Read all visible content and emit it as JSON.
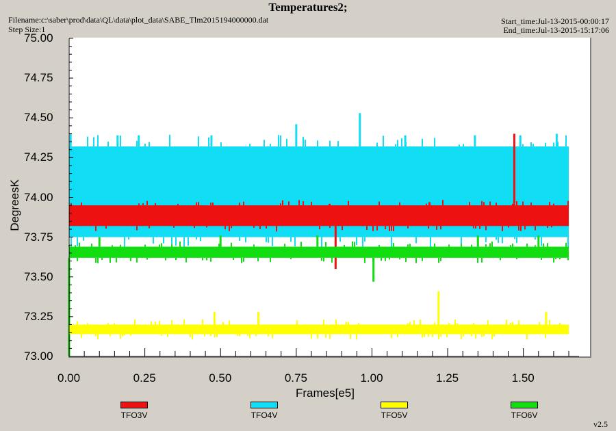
{
  "header": {
    "title": "Temperatures2;",
    "filename": "Filename:c:\\saber\\prod\\data\\QL\\data\\plot_data\\SABE_Tlm2015194000000.dat",
    "step_size": "Step Size:1",
    "start_time": "Start_time:Jul-13-2015-00:00:17",
    "end_time": "End_time:Jul-13-2015-15:17:06"
  },
  "version": "v2.5",
  "chart_data": {
    "type": "line",
    "title": "Temperatures2;",
    "xlabel": "Frames[e5]",
    "ylabel": "DegreesK",
    "xlim": [
      0,
      1.72
    ],
    "ylim": [
      73.0,
      75.0
    ],
    "x_ticks": [
      "0.00",
      "0.25",
      "0.50",
      "0.75",
      "1.00",
      "1.25",
      "1.50"
    ],
    "y_ticks": [
      "73.00",
      "73.25",
      "73.50",
      "73.75",
      "74.00",
      "74.25",
      "74.50",
      "74.75",
      "75.00"
    ],
    "x_range": [
      0,
      1.65
    ],
    "series": [
      {
        "name": "TFO3V",
        "color": "#ee1111",
        "band": [
          73.82,
          73.95
        ],
        "spikes": [
          [
            0.04,
            73.95
          ],
          [
            0.19,
            73.9
          ],
          [
            0.43,
            73.95
          ],
          [
            0.86,
            73.96
          ],
          [
            0.88,
            73.55
          ],
          [
            0.97,
            73.92
          ],
          [
            1.06,
            73.95
          ],
          [
            1.19,
            73.97
          ],
          [
            1.47,
            74.4
          ],
          [
            1.51,
            73.92
          ]
        ]
      },
      {
        "name": "TFO4V",
        "color": "#11ddf5",
        "band": [
          73.75,
          74.32
        ],
        "spikes": [
          [
            0.005,
            74.4
          ],
          [
            0.16,
            74.39
          ],
          [
            0.23,
            74.39
          ],
          [
            0.47,
            74.39
          ],
          [
            0.75,
            74.46
          ],
          [
            0.96,
            74.53
          ],
          [
            1.11,
            74.39
          ],
          [
            1.34,
            74.39
          ],
          [
            1.49,
            74.39
          ],
          [
            1.61,
            74.4
          ]
        ]
      },
      {
        "name": "TFO5V",
        "color": "#ffff00",
        "band": [
          73.14,
          73.2
        ],
        "spikes": [
          [
            0.48,
            73.28
          ],
          [
            0.625,
            73.28
          ],
          [
            1.22,
            73.41
          ],
          [
            1.575,
            73.28
          ]
        ]
      },
      {
        "name": "TFO6V",
        "color": "#11dd11",
        "band": [
          73.62,
          73.69
        ],
        "spikes": [
          [
            0.0,
            73.0
          ],
          [
            0.1,
            73.75
          ],
          [
            0.5,
            73.76
          ],
          [
            0.82,
            73.76
          ],
          [
            1.005,
            73.47
          ],
          [
            1.35,
            73.76
          ],
          [
            1.55,
            73.76
          ]
        ]
      }
    ],
    "legend_position": "bottom"
  }
}
